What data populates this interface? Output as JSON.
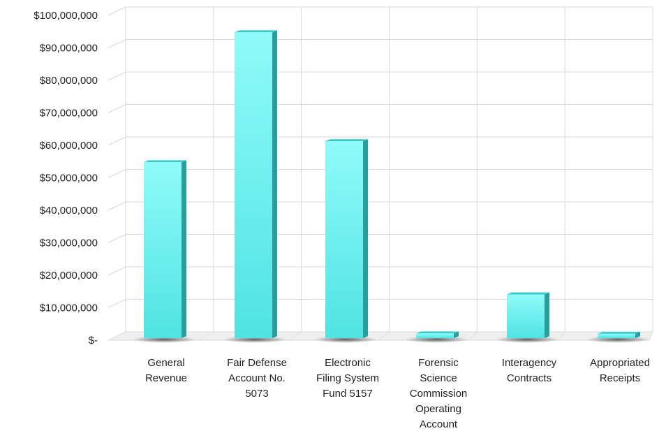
{
  "chart_data": {
    "type": "bar",
    "categories": [
      [
        "General",
        "Revenue"
      ],
      [
        "Fair Defense",
        "Account No.",
        "5073"
      ],
      [
        "Electronic",
        "Filing System",
        "Fund 5157"
      ],
      [
        "Forensic",
        "Science",
        "Commission",
        "Operating",
        "Account"
      ],
      [
        "Interagency",
        "Contracts"
      ],
      [
        "Appropriated",
        "Receipts"
      ]
    ],
    "values": [
      53500000,
      93500000,
      60000000,
      800000,
      12800000,
      700000
    ],
    "ylim": [
      0,
      100000000
    ],
    "ytick_values": [
      0,
      10000000,
      20000000,
      30000000,
      40000000,
      50000000,
      60000000,
      70000000,
      80000000,
      90000000,
      100000000
    ],
    "ytick_labels": [
      "$-",
      "$10,000,000",
      "$20,000,000",
      "$30,000,000",
      "$40,000,000",
      "$50,000,000",
      "$60,000,000",
      "$70,000,000",
      "$80,000,000",
      "$90,000,000",
      "$100,000,000"
    ],
    "grid": true,
    "legend": "none",
    "colors": {
      "bar_front": "#5ff0ef",
      "bar_light": "#8ffbfa",
      "bar_side": "#2a9d9c",
      "bar_top": "#38c9c8",
      "grid": "#d9d9d9",
      "floor": "#eeeeee"
    }
  }
}
